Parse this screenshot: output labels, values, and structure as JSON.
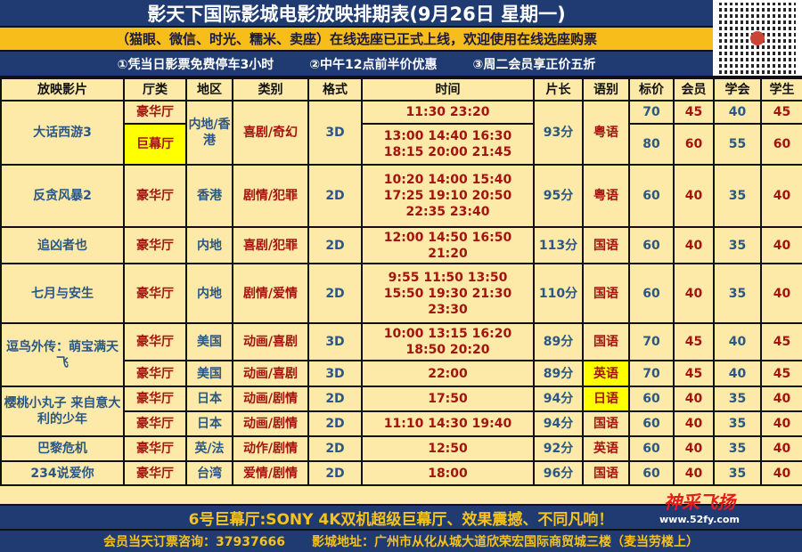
{
  "header": {
    "title": "影天下国际影城电影放映排期表(9月26日 星期一)",
    "notice": "（猫眼、微信、时光、糯米、卖座）在线选座已正式上线，欢迎使用在线选座购票",
    "promos": [
      "①凭当日影票免费停车3小时",
      "②中午12点前半价优惠",
      "③周二会员享正价五折"
    ],
    "qr_icon": "qr-code-icon"
  },
  "columns": [
    "放映影片",
    "厅类",
    "地区",
    "类别",
    "格式",
    "时间",
    "片长",
    "语别",
    "标价",
    "会员",
    "学会",
    "学生"
  ],
  "colors": {
    "navy": "#1f3b72",
    "yellow": "#f6bd1b",
    "cell": "#fde9a8",
    "blue_text": "#2b5784",
    "red_text": "#a3140f",
    "highlight": "#ffff00"
  },
  "movies": [
    {
      "title": "大话西游3",
      "region": "内地/香港",
      "genre": "喜剧/奇幻",
      "format": "3D",
      "duration": "93分",
      "language": "粤语",
      "showings": [
        {
          "hall": "豪华厅",
          "times": "11:30 23:20",
          "prices": [
            "70",
            "45",
            "40",
            "45"
          ]
        },
        {
          "hall": "巨幕厅",
          "hall_highlight": true,
          "times": "13:00 14:40 16:30\n18:15 20:00 21:45",
          "prices": [
            "80",
            "60",
            "55",
            "60"
          ]
        }
      ]
    },
    {
      "title": "反贪风暴2",
      "showings": [
        {
          "hall": "豪华厅",
          "region": "香港",
          "genre": "剧情/犯罪",
          "format": "2D",
          "times": "10:20 14:00 15:40\n17:25 19:10 20:50\n22:35 23:40",
          "duration": "95分",
          "language": "粤语",
          "prices": [
            "60",
            "40",
            "35",
            "40"
          ]
        }
      ]
    },
    {
      "title": "追凶者也",
      "showings": [
        {
          "hall": "豪华厅",
          "region": "内地",
          "genre": "喜剧/犯罪",
          "format": "2D",
          "times": "12:00 14:50 16:50\n21:20",
          "duration": "113分",
          "language": "国语",
          "prices": [
            "60",
            "40",
            "35",
            "40"
          ]
        }
      ]
    },
    {
      "title": "七月与安生",
      "showings": [
        {
          "hall": "豪华厅",
          "region": "内地",
          "genre": "剧情/爱情",
          "format": "2D",
          "times": "9:55 11:50 13:50\n15:50 19:30 21:30\n23:30",
          "duration": "110分",
          "language": "国语",
          "prices": [
            "60",
            "40",
            "35",
            "40"
          ]
        }
      ]
    },
    {
      "title": "逗鸟外传：萌宝满天飞",
      "showings": [
        {
          "hall": "豪华厅",
          "region": "美国",
          "genre": "动画/喜剧",
          "format": "3D",
          "times": "10:00 13:15 16:20\n18:50 20:20",
          "duration": "89分",
          "language": "国语",
          "prices": [
            "70",
            "45",
            "40",
            "45"
          ]
        },
        {
          "hall": "豪华厅",
          "region": "美国",
          "genre": "动画/喜剧",
          "format": "3D",
          "times": "22:00",
          "duration": "89分",
          "language": "英语",
          "lang_highlight": true,
          "prices": [
            "70",
            "45",
            "40",
            "45"
          ]
        }
      ]
    },
    {
      "title": "樱桃小丸子 来自意大利的少年",
      "showings": [
        {
          "hall": "豪华厅",
          "region": "日本",
          "genre": "动画/剧情",
          "format": "2D",
          "times": "17:50",
          "duration": "94分",
          "language": "日语",
          "lang_highlight": true,
          "prices": [
            "60",
            "40",
            "35",
            "40"
          ]
        },
        {
          "hall": "豪华厅",
          "region": "日本",
          "genre": "动画/剧情",
          "format": "2D",
          "times": "11:10 14:30 19:40",
          "duration": "94分",
          "language": "国语",
          "prices": [
            "60",
            "40",
            "35",
            "40"
          ]
        }
      ]
    },
    {
      "title": "巴黎危机",
      "showings": [
        {
          "hall": "豪华厅",
          "region": "英/法",
          "genre": "动作/剧情",
          "format": "2D",
          "times": "12:50",
          "duration": "92分",
          "language": "英语",
          "prices": [
            "60",
            "40",
            "35",
            "40"
          ]
        }
      ]
    },
    {
      "title": "234说爱你",
      "showings": [
        {
          "hall": "豪华厅",
          "region": "台湾",
          "genre": "爱情/剧情",
          "format": "2D",
          "times": "18:00",
          "duration": "96分",
          "language": "国语",
          "prices": [
            "60",
            "40",
            "35",
            "40"
          ]
        }
      ]
    }
  ],
  "footer": {
    "highlight": "6号巨幕厅:SONY 4K双机超级巨幕厅、效果震撼、不同凡响！",
    "hotline": "会员当天订票咨询：37937666",
    "address": "影城地址：广州市从化从城大道欣荣宏国际商贸城三楼（麦当劳楼上）"
  },
  "watermark": {
    "logo": "神采飞扬",
    "url": "www.52fy.com"
  }
}
